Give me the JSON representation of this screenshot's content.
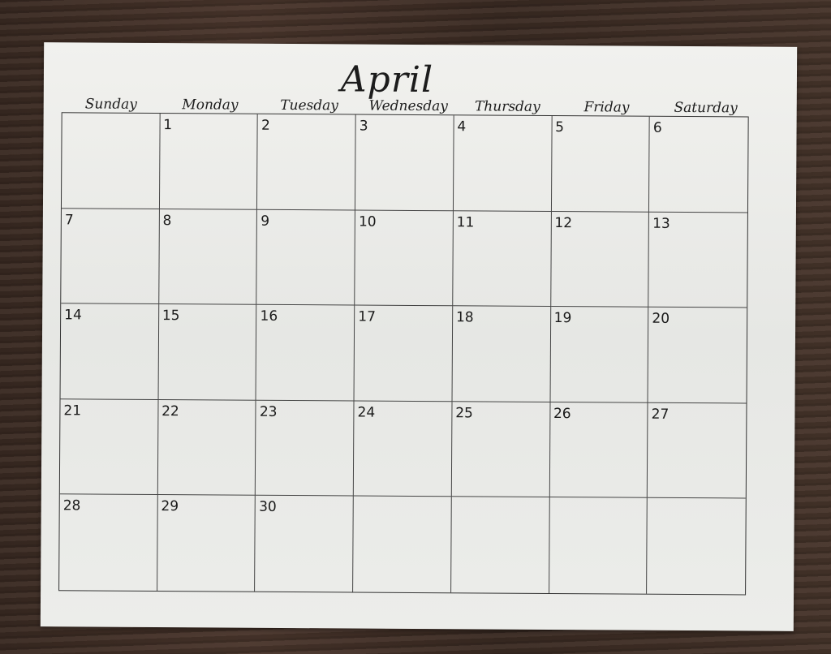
{
  "calendar": {
    "month": "April",
    "weekdays": [
      "Sunday",
      "Monday",
      "Tuesday",
      "Wednesday",
      "Thursday",
      "Friday",
      "Saturday"
    ],
    "cells": [
      "",
      "1",
      "2",
      "3",
      "4",
      "5",
      "6",
      "7",
      "8",
      "9",
      "10",
      "11",
      "12",
      "13",
      "14",
      "15",
      "16",
      "17",
      "18",
      "19",
      "20",
      "21",
      "22",
      "23",
      "24",
      "25",
      "26",
      "27",
      "28",
      "29",
      "30",
      "",
      "",
      "",
      ""
    ]
  }
}
